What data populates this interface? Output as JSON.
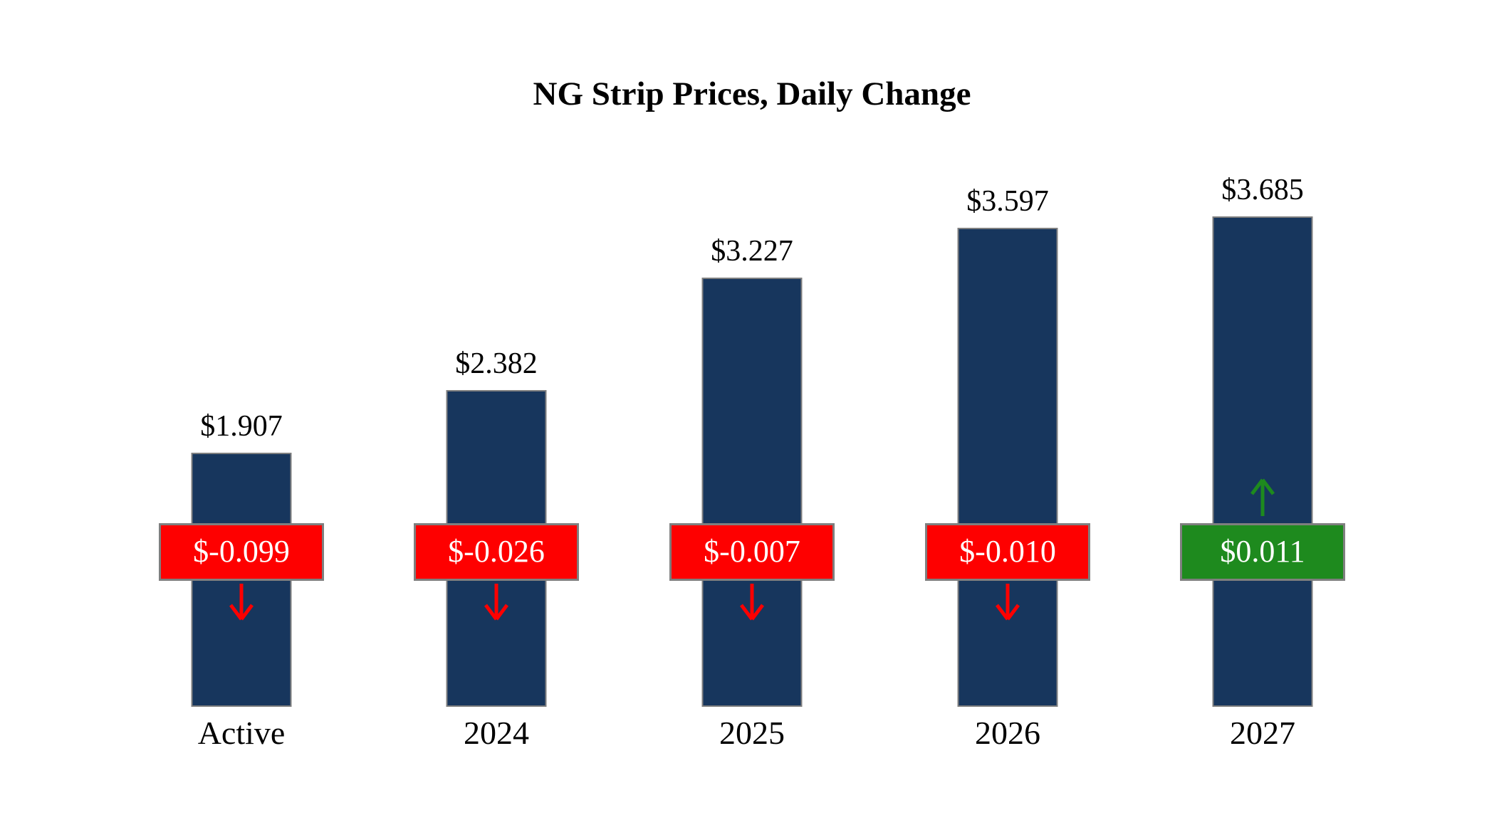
{
  "title": "NG Strip Prices, Daily Change",
  "colors": {
    "bar": "#17365d",
    "negative": "#fe0000",
    "positive": "#1e8a1e",
    "badge_border": "#7f7f7f",
    "badge_text": "#ffffff"
  },
  "chart_data": {
    "type": "bar",
    "title": "NG Strip Prices, Daily Change",
    "categories": [
      "Active",
      "2024",
      "2025",
      "2026",
      "2027"
    ],
    "values": [
      1.907,
      2.382,
      3.227,
      3.597,
      3.685
    ],
    "value_labels": [
      "$1.907",
      "$2.382",
      "$3.227",
      "$3.597",
      "$3.685"
    ],
    "changes": [
      -0.099,
      -0.026,
      -0.007,
      -0.01,
      0.011
    ],
    "change_labels": [
      "$-0.099",
      "$-0.026",
      "$-0.007",
      "$-0.010",
      "$0.011"
    ],
    "ylim": [
      0,
      4
    ],
    "xlabel": "",
    "ylabel": "",
    "grid": false,
    "legend": false,
    "bar_color": "#17365d",
    "negative_change_color": "#fe0000",
    "positive_change_color": "#1e8a1e"
  }
}
